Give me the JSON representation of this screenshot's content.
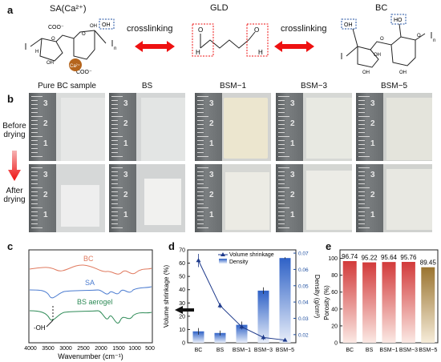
{
  "panel_a": {
    "letter": "a",
    "left_label": "SA(Ca²⁺)",
    "center_label": "GLD",
    "right_label": "BC",
    "crosslinking_left": "crosslinking",
    "crosslinking_right": "crosslinking",
    "oh_box_left": "OH",
    "oh_box_right": "OH",
    "ho_box_right": "HO",
    "ca_label": "Ca²⁺",
    "coo_top": "COO⁻",
    "coo_bottom": "COO⁻",
    "aldehyde_o": "O",
    "aldehyde_h": "H",
    "atom_O": "O",
    "atom_H": "H",
    "atom_OH": "OH",
    "atom_n": "n"
  },
  "panel_b": {
    "letter": "b",
    "samples": [
      "Pure BC sample",
      "BS",
      "BSM−1",
      "BSM−3",
      "BSM−5"
    ],
    "before_label_line1": "Before",
    "before_label_line2": "drying",
    "after_label_line1": "After",
    "after_label_line2": "drying",
    "ruler_numbers": [
      "3",
      "2",
      "1"
    ]
  },
  "panel_c": {
    "letter": "c",
    "series_labels": [
      "BC",
      "SA",
      "BS aerogel"
    ],
    "series_colors": [
      "#e07a5f",
      "#4a7bd0",
      "#2e8b57"
    ],
    "annotation": "-OH",
    "xlabel": "Wavenumber (cm⁻¹)",
    "x_ticks": [
      "4000",
      "3500",
      "3000",
      "2500",
      "2000",
      "1500",
      "1000",
      "500"
    ]
  },
  "panel_d": {
    "letter": "d",
    "legend": [
      "Volume shrinkage",
      "Density"
    ],
    "ylabel_left": "Volume shrinkage (%)",
    "ylabel_right": "Density (g/cm³)",
    "left_ticks": [
      "0",
      "10",
      "20",
      "30",
      "40",
      "50",
      "60",
      "70"
    ],
    "right_ticks": [
      "0.02",
      "0.03",
      "0.04",
      "0.05",
      "0.06",
      "0.07"
    ],
    "categories": [
      "BC",
      "BS",
      "BSM−1",
      "BSM−3",
      "BSM−5"
    ]
  },
  "panel_e": {
    "letter": "e",
    "ylabel": "Porosity (%)",
    "y_ticks": [
      "0",
      "20",
      "40",
      "60",
      "80",
      "100"
    ],
    "categories": [
      "BC",
      "BS",
      "BSM−1",
      "BSM−3",
      "BSM−5"
    ],
    "value_labels": [
      "96.74",
      "95.22",
      "95.64",
      "95.76",
      "89.45"
    ]
  },
  "chart_data": [
    {
      "type": "line",
      "title": "",
      "xlabel": "Wavenumber (cm⁻¹)",
      "ylabel": "",
      "xlim": [
        4000,
        500
      ],
      "series": [
        {
          "name": "BC",
          "color": "#e07a5f"
        },
        {
          "name": "SA",
          "color": "#4a7bd0"
        },
        {
          "name": "BS aerogel",
          "color": "#2e8b57"
        }
      ]
    },
    {
      "type": "bar",
      "title": "",
      "categories": [
        "BC",
        "BS",
        "BSM−1",
        "BSM−3",
        "BSM−5"
      ],
      "xlabel": "",
      "ylabel": "Volume shrinkage (%)",
      "y2label": "Density (g/cm³)",
      "ylim": [
        0,
        70
      ],
      "y2lim": [
        0.015,
        0.072
      ],
      "series": [
        {
          "name": "Volume shrinkage",
          "type": "line",
          "axis": "left",
          "values": [
            62,
            28,
            12,
            4,
            2
          ],
          "errors": [
            5,
            2,
            2,
            2,
            1
          ],
          "color": "#1f3b8c"
        },
        {
          "name": "Density",
          "type": "bar",
          "axis": "right",
          "values": [
            0.022,
            0.021,
            0.026,
            0.047,
            0.067
          ],
          "errors": [
            0.002,
            0.0015,
            0.002,
            0.002,
            0.0005
          ],
          "color": "#2f62c7"
        }
      ],
      "legend_position": "top"
    },
    {
      "type": "bar",
      "title": "",
      "categories": [
        "BC",
        "BS",
        "BSM−1",
        "BSM−3",
        "BSM−5"
      ],
      "values": [
        96.74,
        95.22,
        95.64,
        95.76,
        89.45
      ],
      "xlabel": "",
      "ylabel": "Porosity (%)",
      "ylim": [
        0,
        110
      ],
      "colors": [
        "#cf3b3b",
        "#d45a4a",
        "#cf4c3c",
        "#c9414a",
        "#a8763a"
      ]
    }
  ]
}
